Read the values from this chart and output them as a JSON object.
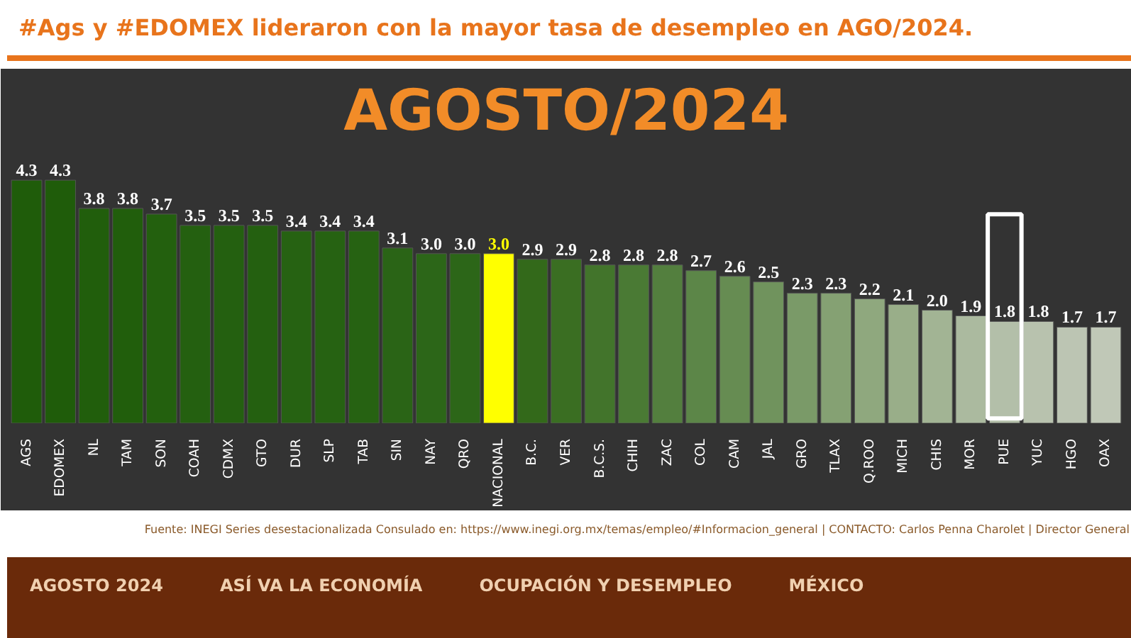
{
  "chart_data": {
    "type": "bar",
    "title": "#Ags y #EDOMEX lideraron con la mayor tasa de desempleo en AGO/2024.",
    "subtitle": "AGOSTO/2024",
    "categories": [
      "AGS",
      "EDOMEX",
      "NL",
      "TAM",
      "SON",
      "COAH",
      "CDMX",
      "GTO",
      "DUR",
      "SLP",
      "TAB",
      "SIN",
      "NAY",
      "QRO",
      "NACIONAL",
      "B.C.",
      "VER",
      "B.C.S.",
      "CHIH",
      "ZAC",
      "COL",
      "CAM",
      "JAL",
      "GRO",
      "TLAX",
      "Q.ROO",
      "MICH",
      "CHIS",
      "MOR",
      "PUE",
      "YUC",
      "HGO",
      "OAX"
    ],
    "values": [
      4.3,
      4.3,
      3.8,
      3.8,
      3.7,
      3.5,
      3.5,
      3.5,
      3.4,
      3.4,
      3.4,
      3.1,
      3.0,
      3.0,
      3.0,
      2.9,
      2.9,
      2.8,
      2.8,
      2.8,
      2.7,
      2.6,
      2.5,
      2.3,
      2.3,
      2.2,
      2.1,
      2.0,
      1.9,
      1.8,
      1.8,
      1.7,
      1.7
    ],
    "colors": [
      "#1f5c0a",
      "#1f5c0a",
      "#215e0c",
      "#215e0c",
      "#23600e",
      "#246010",
      "#246010",
      "#246010",
      "#266212",
      "#266212",
      "#266212",
      "#2a6416",
      "#2c6618",
      "#2c6618",
      "#ffff00",
      "#33691a",
      "#3a6e22",
      "#42742b",
      "#4a7a34",
      "#537f3e",
      "#5c8648",
      "#668c52",
      "#70935d",
      "#7a9a68",
      "#85a173",
      "#8fa87e",
      "#99ae89",
      "#a2b494",
      "#abba9f",
      "#b3bfa9",
      "#b8c2ae",
      "#bcc5b3",
      "#c0c8b7"
    ],
    "value_labels": [
      "4.3",
      "4.3",
      "3.8",
      "3.8",
      "3.7",
      "3.5",
      "3.5",
      "3.5",
      "3.4",
      "3.4",
      "3.4",
      "3.1",
      "3.0",
      "3.0",
      "3.0",
      "2.9",
      "2.9",
      "2.8",
      "2.8",
      "2.8",
      "2.7",
      "2.6",
      "2.5",
      "2.3",
      "2.3",
      "2.2",
      "2.1",
      "2.0",
      "1.9",
      "1.8",
      "1.8",
      "1.7",
      "1.7"
    ],
    "grid": false,
    "annotations": [
      "Fuente: INEGI Series desestacionalizada Consulado en: https://www.inegi.org.mx/temas/empleo/#Informacion_general | CONTACTO: Carlos Penna Charolet | Director General",
      "AGOSTO 2024",
      "ASÍ VA LA ECONOMÍA",
      "OCUPACIÓN Y DESEMPLEO",
      "MÉXICO"
    ]
  }
}
